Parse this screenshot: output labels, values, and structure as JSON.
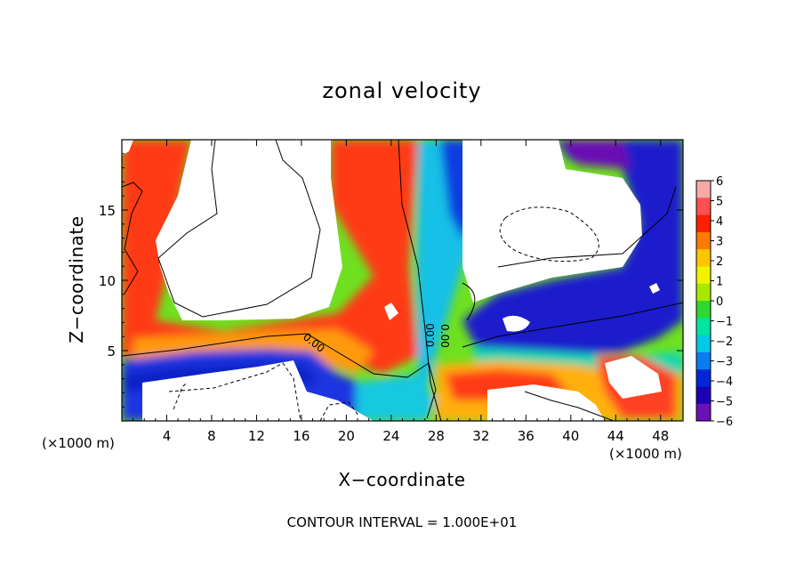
{
  "chart_data": {
    "type": "heatmap",
    "title": "zonal velocity",
    "xlabel": "X−coordinate",
    "ylabel": "Z−coordinate",
    "x_unit_note": "(×1000 m)",
    "x_ticks": [
      "4",
      "8",
      "12",
      "16",
      "20",
      "24",
      "28",
      "32",
      "36",
      "40",
      "44",
      "48"
    ],
    "y_ticks": [
      "5",
      "10",
      "15"
    ],
    "xlim": [
      0,
      50
    ],
    "ylim": [
      0,
      20
    ],
    "colorbar": {
      "labels": [
        "6",
        "5",
        "4",
        "3",
        "2",
        "1",
        "0",
        "−1",
        "−2",
        "−3",
        "−4",
        "−5",
        "−6"
      ],
      "range": [
        -6,
        6
      ],
      "colors": [
        "#f7a8a8",
        "#ff5050",
        "#ff1e00",
        "#ff7a00",
        "#ffc400",
        "#f2f200",
        "#a8e800",
        "#2ed82e",
        "#00e4a0",
        "#00c8e8",
        "#0a7cf0",
        "#0026d8",
        "#1a00b4",
        "#6a10b4"
      ]
    },
    "contour_labels": [
      "0.00",
      "0.00",
      "0.00"
    ],
    "contour_interval_text": "CONTOUR INTERVAL = 1.000E+01"
  }
}
